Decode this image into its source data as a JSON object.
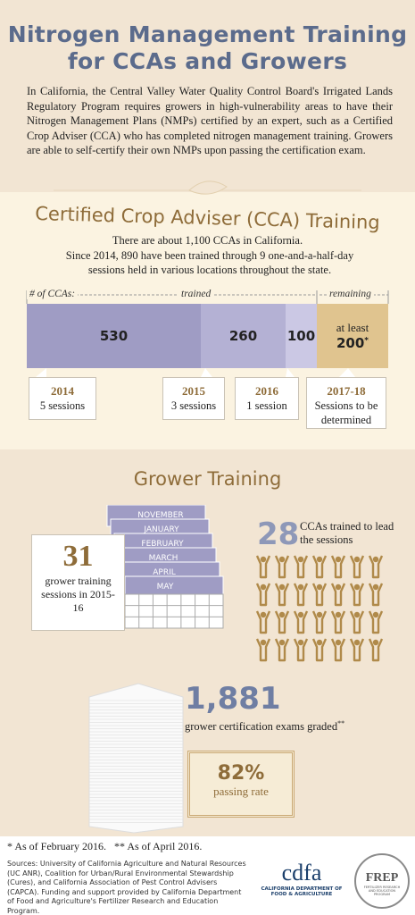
{
  "header": {
    "title_lines": [
      "Nitrogen Management Training",
      "for CCAs and Growers"
    ],
    "intro": "In California, the Central Valley Water Quality Control Board's Irrigated Lands Regulatory Program requires growers in high-vulnerability areas to have their Nitrogen Management Plans (NMPs) certified by an expert, such as a Certified Crop Adviser (CCA) who has completed nitrogen management training. Growers are able to self-certify their own NMPs upon passing the certification exam."
  },
  "cca": {
    "heading": "Certified Crop Adviser (CCA) Training",
    "line1": "There are about 1,100 CCAs in California.",
    "line2": "Since 2014, 890 have been trained through 9 one-and-a-half-day sessions held in various locations throughout the state.",
    "bar_labels": [
      "# of CCAs:",
      "trained",
      "remaining"
    ],
    "segments": [
      {
        "value": "530",
        "year": "2014",
        "sessions": "5 sessions"
      },
      {
        "value": "260",
        "year": "2015",
        "sessions": "3 sessions"
      },
      {
        "value": "100",
        "year": "2016",
        "sessions": "1 session"
      }
    ],
    "remaining": {
      "prefix": "at least",
      "value": "200",
      "mark": "*",
      "year": "2017-18",
      "sessions": "Sessions to be determined"
    }
  },
  "grower": {
    "heading": "Grower Training",
    "months": [
      "NOVEMBER",
      "JANUARY",
      "FEBRUARY",
      "MARCH",
      "APRIL",
      "MAY"
    ],
    "sessions_count": "31",
    "sessions_text": "grower training sessions in 2015-16",
    "ccas_count": 28,
    "ccas_text": "CCAs trained to lead the sessions",
    "exams_count": "1,881",
    "exams_text": "grower certification exams graded",
    "exams_mark": "**",
    "pass_rate": "82%",
    "pass_text": "passing rate"
  },
  "footer": {
    "note1": "* As of February 2016.",
    "note2": "** As of April 2016.",
    "sources": "Sources: University of California Agriculture and Natural Resources (UC ANR), Coalition for Urban/Rural Environmental Stewardship (Cures), and California Association of Pest Control Advisers (CAPCA). Funding and support provided by California Department of Food and Agriculture's Fertilizer Research and Education Program.",
    "cdfa": "cdfa",
    "cdfa_sub": "CALIFORNIA DEPARTMENT OF FOOD & AGRICULTURE",
    "frep": "FREP",
    "frep_sub": "FERTILIZER RESEARCH AND EDUCATION PROGRAM"
  }
}
